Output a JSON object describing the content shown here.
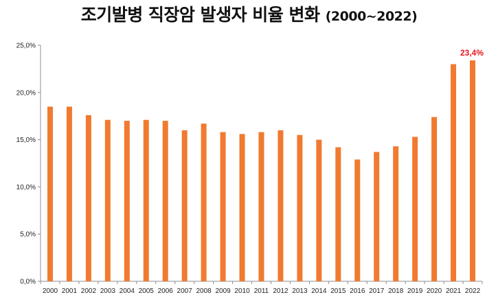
{
  "title": "조기발병 직장암 발생자 비율 변화",
  "subtitle": "(2000~2022)",
  "colors": {
    "bar": "#f07a30",
    "highlight_label": "#e8141c",
    "axis": "#8c8c8c"
  },
  "chart_data": {
    "type": "bar",
    "title": "조기발병 직장암 발생자 비율 변화 (2000~2022)",
    "xlabel": "",
    "ylabel": "",
    "categories": [
      "2000",
      "2001",
      "2002",
      "2003",
      "2004",
      "2005",
      "2006",
      "2007",
      "2008",
      "2009",
      "2010",
      "2011",
      "2012",
      "2013",
      "2014",
      "2015",
      "2016",
      "2017",
      "2018",
      "2019",
      "2020",
      "2021",
      "2022"
    ],
    "values": [
      18.5,
      18.5,
      17.6,
      17.1,
      17.0,
      17.1,
      17.0,
      16.0,
      16.7,
      15.8,
      15.6,
      15.8,
      16.0,
      15.5,
      15.0,
      14.2,
      12.9,
      13.7,
      14.3,
      15.3,
      17.4,
      23.0,
      23.4
    ],
    "ylim": [
      0,
      25
    ],
    "yticks": [
      "0,0%",
      "5,0%",
      "10,0%",
      "15,0%",
      "20,0%",
      "25,0%"
    ],
    "grid": false,
    "annotations": [
      {
        "category": "2022",
        "text": "23,4%"
      }
    ]
  }
}
